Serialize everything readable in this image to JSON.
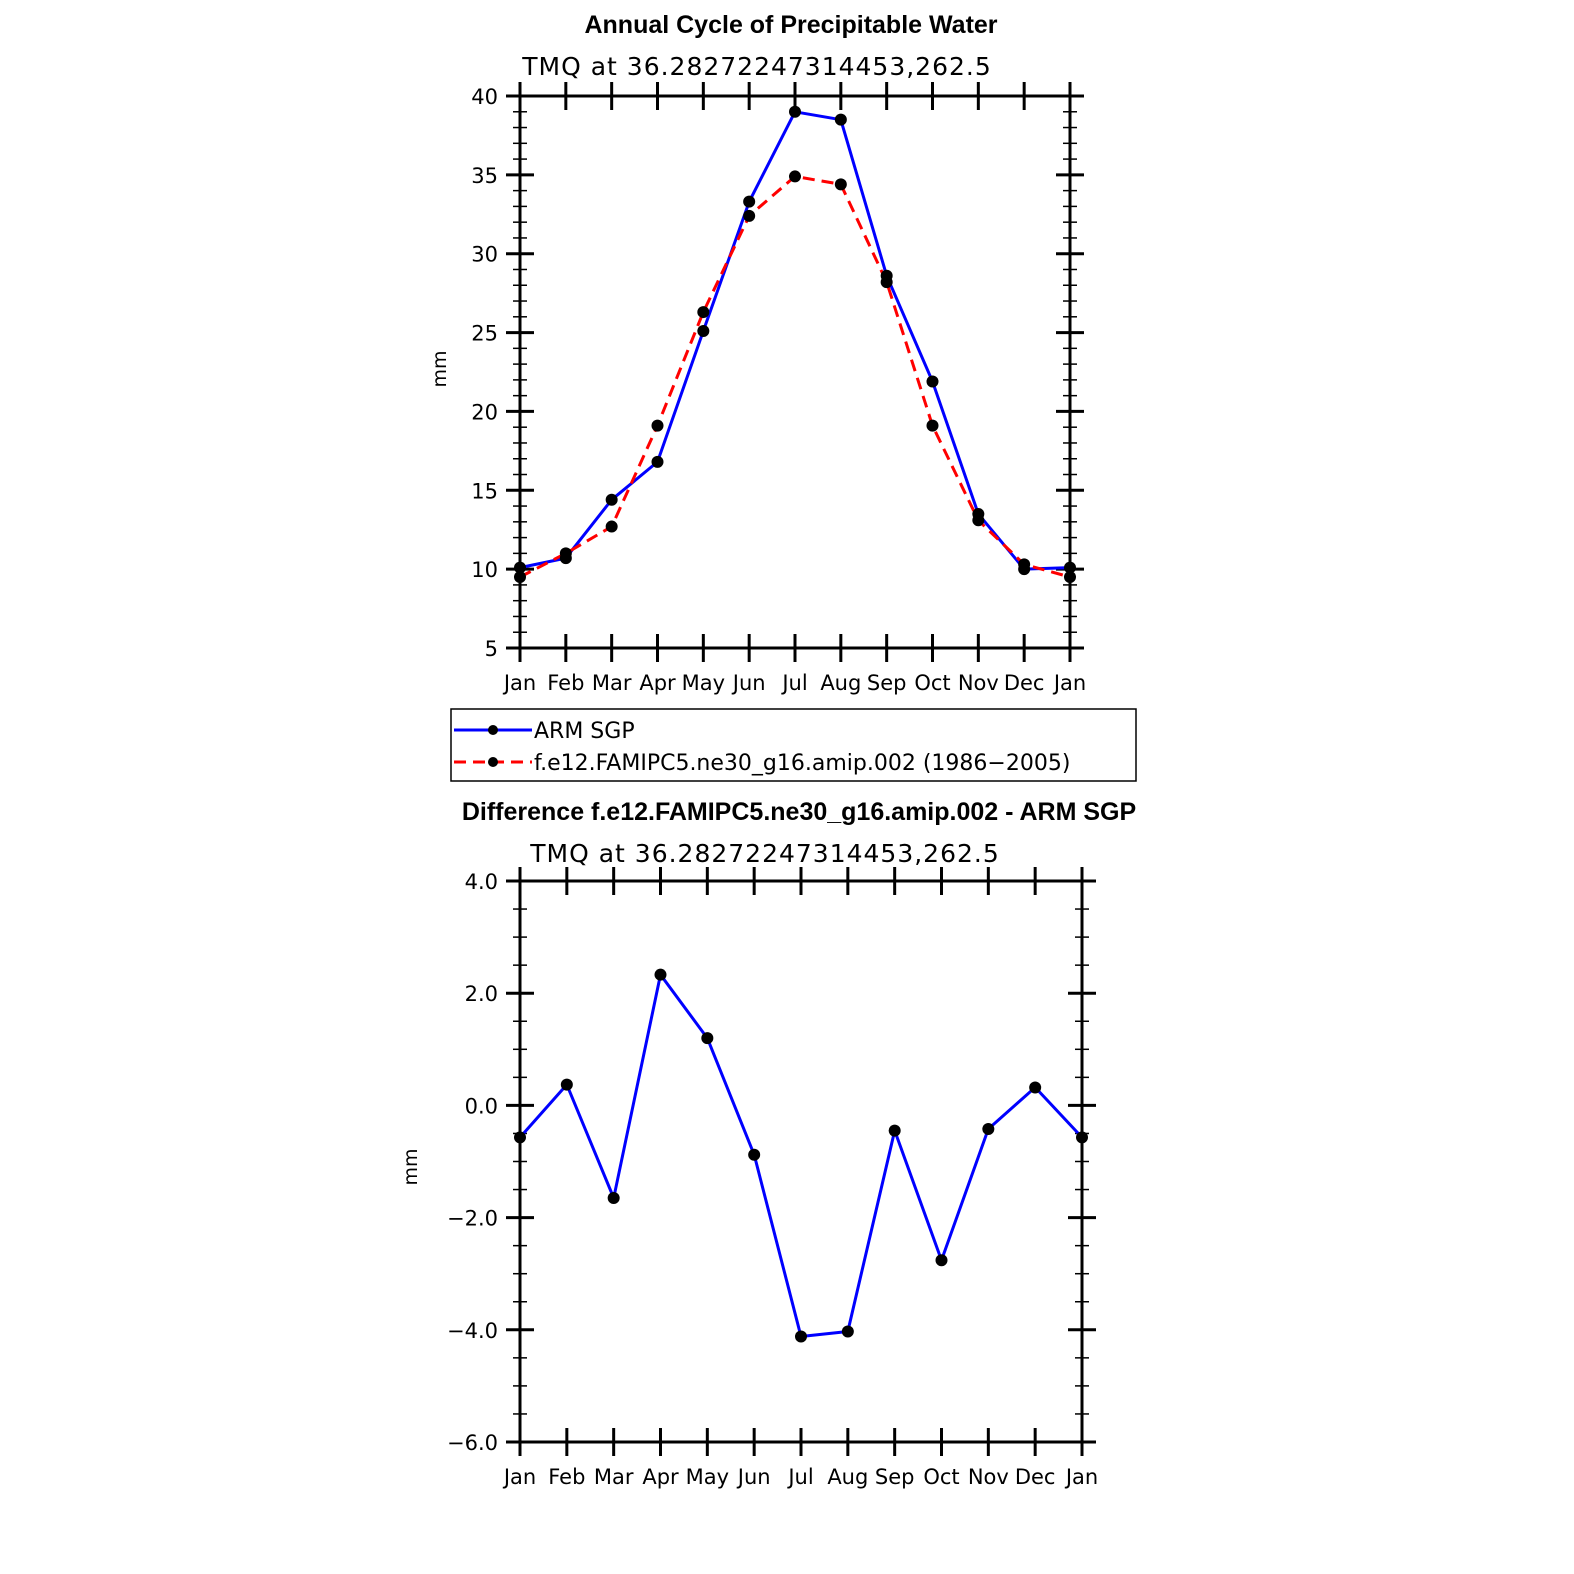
{
  "chart_data": [
    {
      "type": "line",
      "title": "Annual Cycle of Precipitable Water",
      "subtitle": "TMQ at 36.28272247314453,262.5",
      "xlabel": "",
      "ylabel": "mm",
      "categories": [
        "Jan",
        "Feb",
        "Mar",
        "Apr",
        "May",
        "Jun",
        "Jul",
        "Aug",
        "Sep",
        "Oct",
        "Nov",
        "Dec",
        "Jan"
      ],
      "ylim": [
        5,
        40
      ],
      "yticks": [
        5,
        10,
        15,
        20,
        25,
        30,
        35,
        40
      ],
      "ytick_labels": [
        "5",
        "10",
        "15",
        "20",
        "25",
        "30",
        "35",
        "40"
      ],
      "series": [
        {
          "name": "ARM SGP",
          "color": "#0000ff",
          "dash": "solid",
          "values": [
            10.1,
            10.7,
            14.4,
            16.8,
            25.1,
            33.3,
            39.0,
            38.5,
            28.6,
            21.9,
            13.5,
            10.0,
            10.1
          ]
        },
        {
          "name": "f.e12.FAMIPC5.ne30_g16.amip.002 (1986−2005)",
          "color": "#ff0000",
          "dash": "dashed",
          "values": [
            9.5,
            11.0,
            12.7,
            19.1,
            26.3,
            32.4,
            34.9,
            34.4,
            28.2,
            19.1,
            13.1,
            10.3,
            9.5
          ]
        }
      ],
      "legend": {
        "placement": "bottom",
        "entries": [
          "ARM SGP",
          "f.e12.FAMIPC5.ne30_g16.amip.002 (1986−2005)"
        ]
      }
    },
    {
      "type": "line",
      "title": "Difference f.e12.FAMIPC5.ne30_g16.amip.002 - ARM SGP",
      "subtitle": "TMQ at 36.28272247314453,262.5",
      "xlabel": "",
      "ylabel": "mm",
      "categories": [
        "Jan",
        "Feb",
        "Mar",
        "Apr",
        "May",
        "Jun",
        "Jul",
        "Aug",
        "Sep",
        "Oct",
        "Nov",
        "Dec",
        "Jan"
      ],
      "ylim": [
        -6.0,
        4.0
      ],
      "yticks": [
        -6,
        -4,
        -2,
        0,
        2,
        4
      ],
      "ytick_labels": [
        "−6.0",
        "−4.0",
        "−2.0",
        "0.0",
        "2.0",
        "4.0"
      ],
      "series": [
        {
          "name": "Difference",
          "color": "#0000ff",
          "dash": "solid",
          "values": [
            -0.57,
            0.37,
            -1.65,
            2.33,
            1.2,
            -0.88,
            -4.12,
            -4.03,
            -0.45,
            -2.76,
            -0.42,
            0.32,
            -0.57
          ]
        }
      ]
    }
  ]
}
